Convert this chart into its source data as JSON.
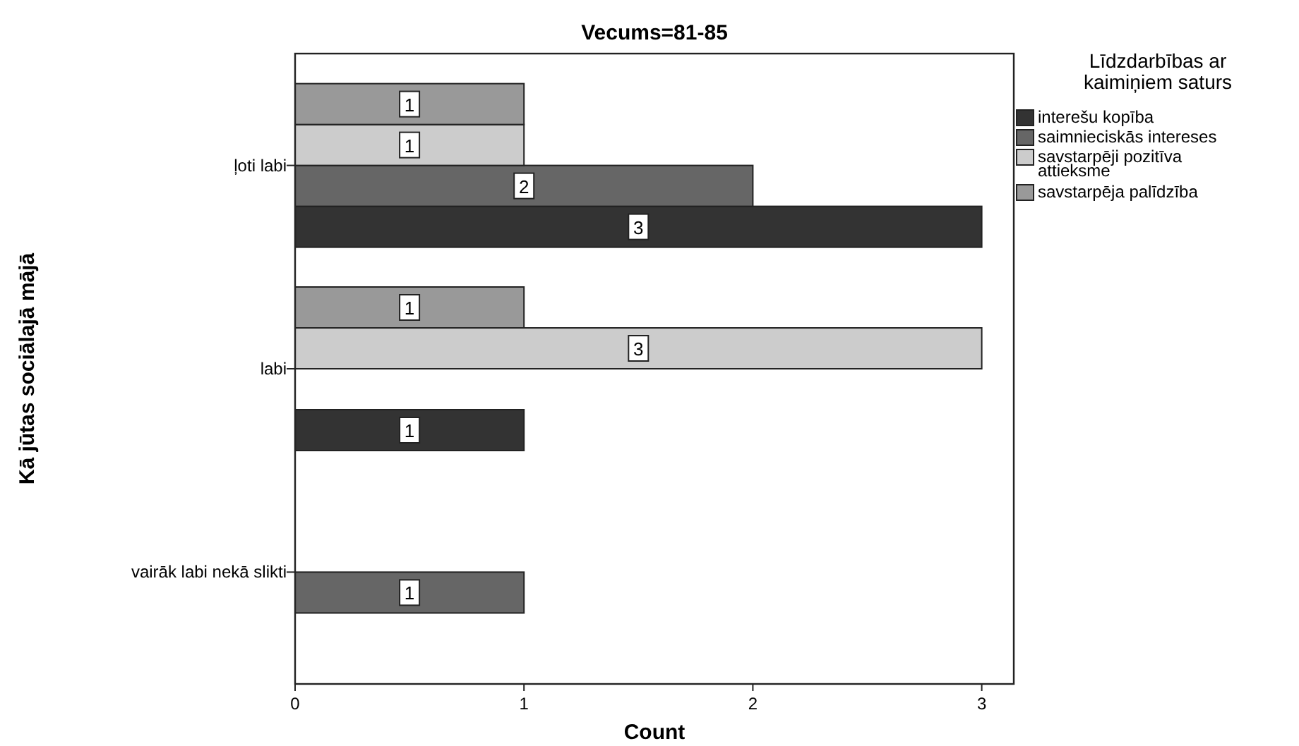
{
  "chart_data": {
    "type": "bar",
    "orientation": "horizontal",
    "title": "Vecums=81-85",
    "xlabel": "Count",
    "ylabel": "Kā jūtas sociālajā mājā",
    "legend_title": "Līdzdarbības ar kaimiņiem saturs",
    "categories": [
      "ļoti labi",
      "labi",
      "vairāk labi nekā slikti"
    ],
    "series": [
      {
        "name": "interešu kopība",
        "color": "#333333",
        "values": [
          3,
          1,
          null
        ]
      },
      {
        "name": "saimnieciskās intereses",
        "color": "#666666",
        "values": [
          2,
          null,
          1
        ]
      },
      {
        "name": "savstarpēji pozitīva attieksme",
        "color": "#cccccc",
        "values": [
          1,
          3,
          null
        ]
      },
      {
        "name": "savstarpēja palīdzība",
        "color": "#999999",
        "values": [
          1,
          1,
          null
        ]
      }
    ],
    "xlim": [
      0,
      3.14
    ],
    "xticks": [
      0,
      1,
      2,
      3
    ],
    "data_labels": true,
    "legend": "right",
    "grid": false
  }
}
